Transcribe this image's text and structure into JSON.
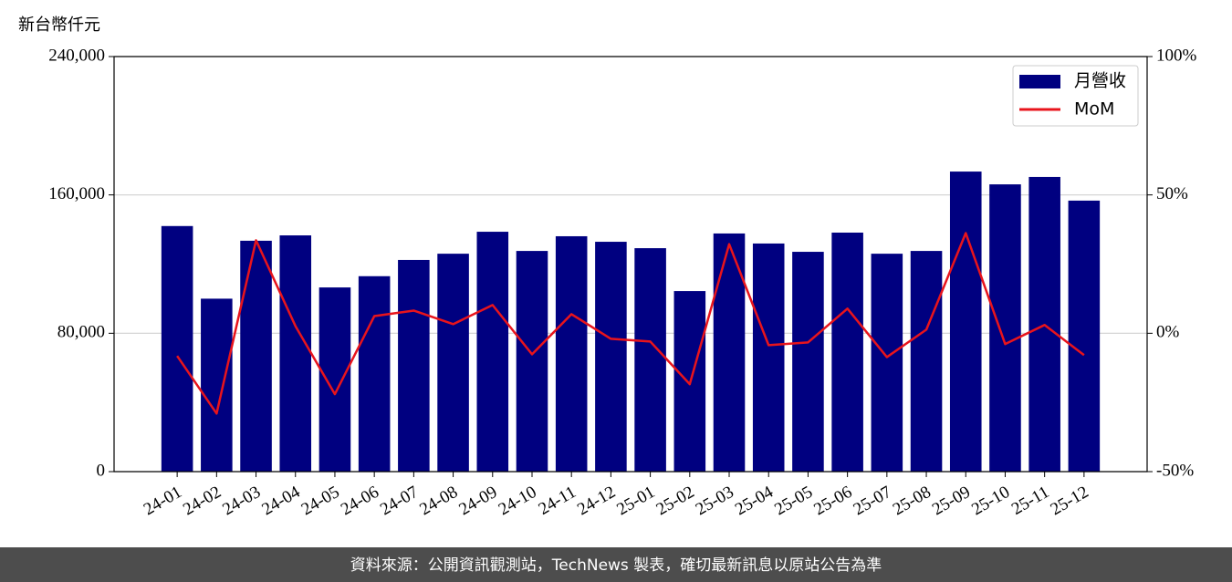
{
  "chart_data": {
    "type": "bar_line",
    "y_label": "新台幣仟元",
    "categories": [
      "24-01",
      "24-02",
      "24-03",
      "24-04",
      "24-05",
      "24-06",
      "24-07",
      "24-08",
      "24-09",
      "24-10",
      "24-11",
      "24-12",
      "25-01",
      "25-02",
      "25-03",
      "25-04",
      "25-05",
      "25-06",
      "25-07",
      "25-08",
      "25-09",
      "25-10",
      "25-11",
      "25-12"
    ],
    "series": [
      {
        "name": "月營收",
        "type": "bar",
        "color": "#000080",
        "values": [
          142000,
          100000,
          133500,
          136600,
          106500,
          113000,
          122400,
          126000,
          138700,
          127600,
          136100,
          132900,
          129200,
          104400,
          137700,
          131900,
          127100,
          138200,
          126000,
          127600,
          173500,
          166100,
          170400,
          156700
        ]
      },
      {
        "name": "MoM",
        "type": "line",
        "axis": "y2",
        "color": "#e8141c",
        "values": [
          -8.2,
          -29,
          33.6,
          2.6,
          -22,
          6.2,
          8.2,
          3.3,
          10.2,
          -7.6,
          6.9,
          -2,
          -3,
          -18.4,
          32.2,
          -4.3,
          -3.3,
          8.9,
          -8.6,
          1.3,
          36.2,
          -3.9,
          3.0,
          -7.9
        ]
      }
    ],
    "ylim": [
      0,
      240000
    ],
    "yticks": [
      0,
      {
        "value": 80000,
        "label": "80,000"
      },
      {
        "value": 160000,
        "label": "160,000"
      },
      {
        "value": 240000,
        "label": "240,000"
      }
    ],
    "y2lim": [
      -50,
      100
    ],
    "y2ticks": [
      {
        "value": -50,
        "label": "-50%"
      },
      {
        "value": 0,
        "label": "0%"
      },
      {
        "value": 50,
        "label": "50%"
      },
      {
        "value": 100,
        "label": "100%"
      }
    ],
    "grid": true,
    "legend": "upper right"
  },
  "source": "資料來源：公開資訊觀測站，TechNews 製表，確切最新訊息以原站公告為準"
}
